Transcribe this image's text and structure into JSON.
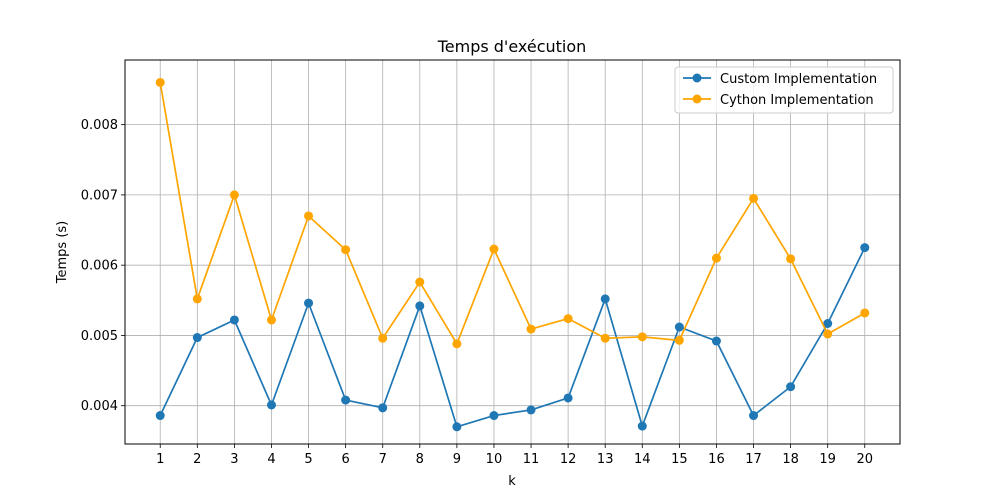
{
  "chart_data": {
    "type": "line",
    "title": "Temps d'exécution",
    "xlabel": "k",
    "ylabel": "Temps (s)",
    "x": [
      1,
      2,
      3,
      4,
      5,
      6,
      7,
      8,
      9,
      10,
      11,
      12,
      13,
      14,
      15,
      16,
      17,
      18,
      19,
      20
    ],
    "xlim": [
      0.05,
      20.95
    ],
    "ylim": [
      0.003455,
      0.00892
    ],
    "yticks": [
      "0.004",
      "0.005",
      "0.006",
      "0.007",
      "0.008"
    ],
    "ytick_values": [
      0.004,
      0.005,
      0.006,
      0.007,
      0.008
    ],
    "grid": true,
    "legend_position": "top-right",
    "series": [
      {
        "name": "Custom Implementation",
        "color": "#1f77b4",
        "values": [
          0.00386,
          0.00497,
          0.00522,
          0.00401,
          0.00546,
          0.00408,
          0.00397,
          0.00542,
          0.0037,
          0.00386,
          0.00394,
          0.00411,
          0.00552,
          0.00371,
          0.00512,
          0.00492,
          0.00386,
          0.00427,
          0.00517,
          0.00625
        ]
      },
      {
        "name": "Cython Implementation",
        "color": "#ffa500",
        "values": [
          0.0086,
          0.00552,
          0.007,
          0.00522,
          0.0067,
          0.00622,
          0.00496,
          0.00576,
          0.00488,
          0.00623,
          0.00509,
          0.00524,
          0.00496,
          0.00498,
          0.00493,
          0.0061,
          0.00695,
          0.00609,
          0.00502,
          0.00532
        ]
      }
    ]
  }
}
